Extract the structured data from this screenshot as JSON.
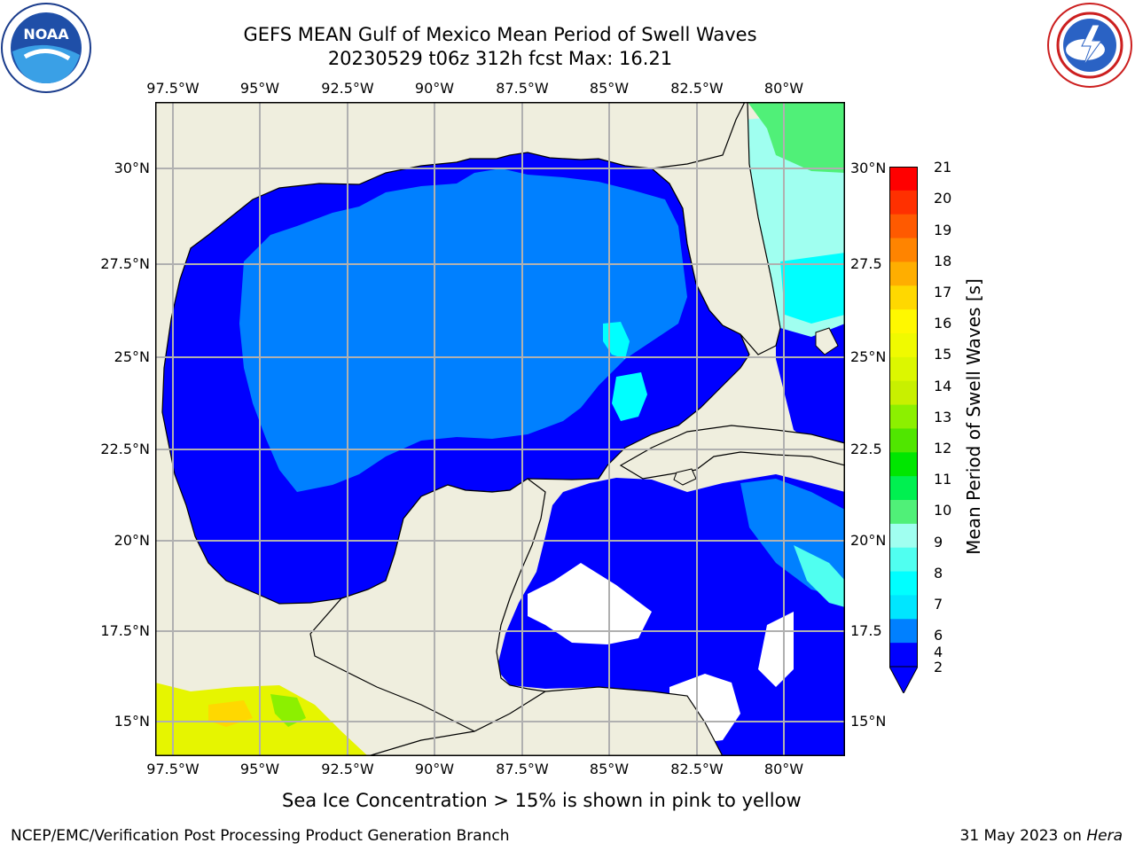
{
  "header": {
    "title_line1": "GEFS MEAN Gulf of Mexico Mean Period of Swell Waves",
    "title_line2": "20230529 t06z 312h fcst   Max: 16.21"
  },
  "logos": {
    "left": {
      "icon": "noaa-logo",
      "text": "NOAA"
    },
    "right": {
      "icon": "nws-logo"
    }
  },
  "map": {
    "lon_labels": [
      "97.5°W",
      "95°W",
      "92.5°W",
      "90°W",
      "87.5°W",
      "85°W",
      "82.5°W",
      "80°W"
    ],
    "lat_labels_left": [
      "30°N",
      "27.5°N",
      "25°N",
      "22.5°N",
      "20°N",
      "17.5°N",
      "15°N"
    ],
    "lat_labels_right": [
      "30°N",
      "27.5",
      "25°N",
      "22.5",
      "20°N",
      "17.5",
      "15°N"
    ],
    "lon_range": [
      -98,
      -79
    ],
    "lat_range": [
      14,
      32
    ],
    "land_color": "#efeede",
    "no_data_color": "#ffffff"
  },
  "colorbar": {
    "title": "Mean Period of Swell Waves [s]",
    "labels": [
      "21",
      "20",
      "19",
      "18",
      "17",
      "16",
      "15",
      "14",
      "13",
      "12",
      "11",
      "10",
      "9",
      "8",
      "7",
      "6",
      "4",
      "2"
    ],
    "colors": [
      "#ff0000",
      "#ff3000",
      "#ff5a00",
      "#ff8400",
      "#ffae00",
      "#ffd800",
      "#fff800",
      "#f0fa00",
      "#dcf700",
      "#c8f000",
      "#8cf000",
      "#50e600",
      "#00e600",
      "#00f050",
      "#50f078",
      "#a0fff0",
      "#50fff0",
      "#00ffff",
      "#00e6ff",
      "#0080ff",
      "#0000ff"
    ]
  },
  "note": "Sea Ice Concentration > 15% is shown in pink to yellow",
  "footer": {
    "left": "NCEP/EMC/Verification Post Processing Product Generation Branch",
    "right_date": "31 May 2023 on ",
    "right_host": "Hera"
  }
}
